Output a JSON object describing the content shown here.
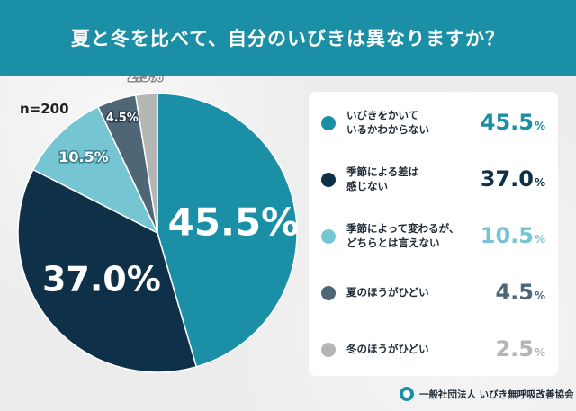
{
  "header": {
    "title": "夏と冬を比べて、自分のいびきは異なりますか？"
  },
  "sample_size": "n=200",
  "footer": {
    "organization": "一般社団法人 いびき無呼吸改善協会",
    "logo_icon": "organization-logo-icon"
  },
  "chart_data": {
    "type": "pie",
    "title": "夏と冬を比べて、自分のいびきは異なりますか？",
    "unit": "%",
    "slices": [
      {
        "label": "いびきをかいて\nいるかわからない",
        "value": 45.5,
        "color": "#1b8fa6"
      },
      {
        "label": "季節による差は\n感じない",
        "value": 37.0,
        "color": "#0e3049"
      },
      {
        "label": "季節によって変わるが、\nどちらとは言えない",
        "value": 10.5,
        "color": "#76c5d3"
      },
      {
        "label": "夏のほうがひどい",
        "value": 4.5,
        "color": "#4f6677"
      },
      {
        "label": "冬のほうがひどい",
        "value": 2.5,
        "color": "#b5b5b5"
      }
    ],
    "legend_position": "right"
  }
}
